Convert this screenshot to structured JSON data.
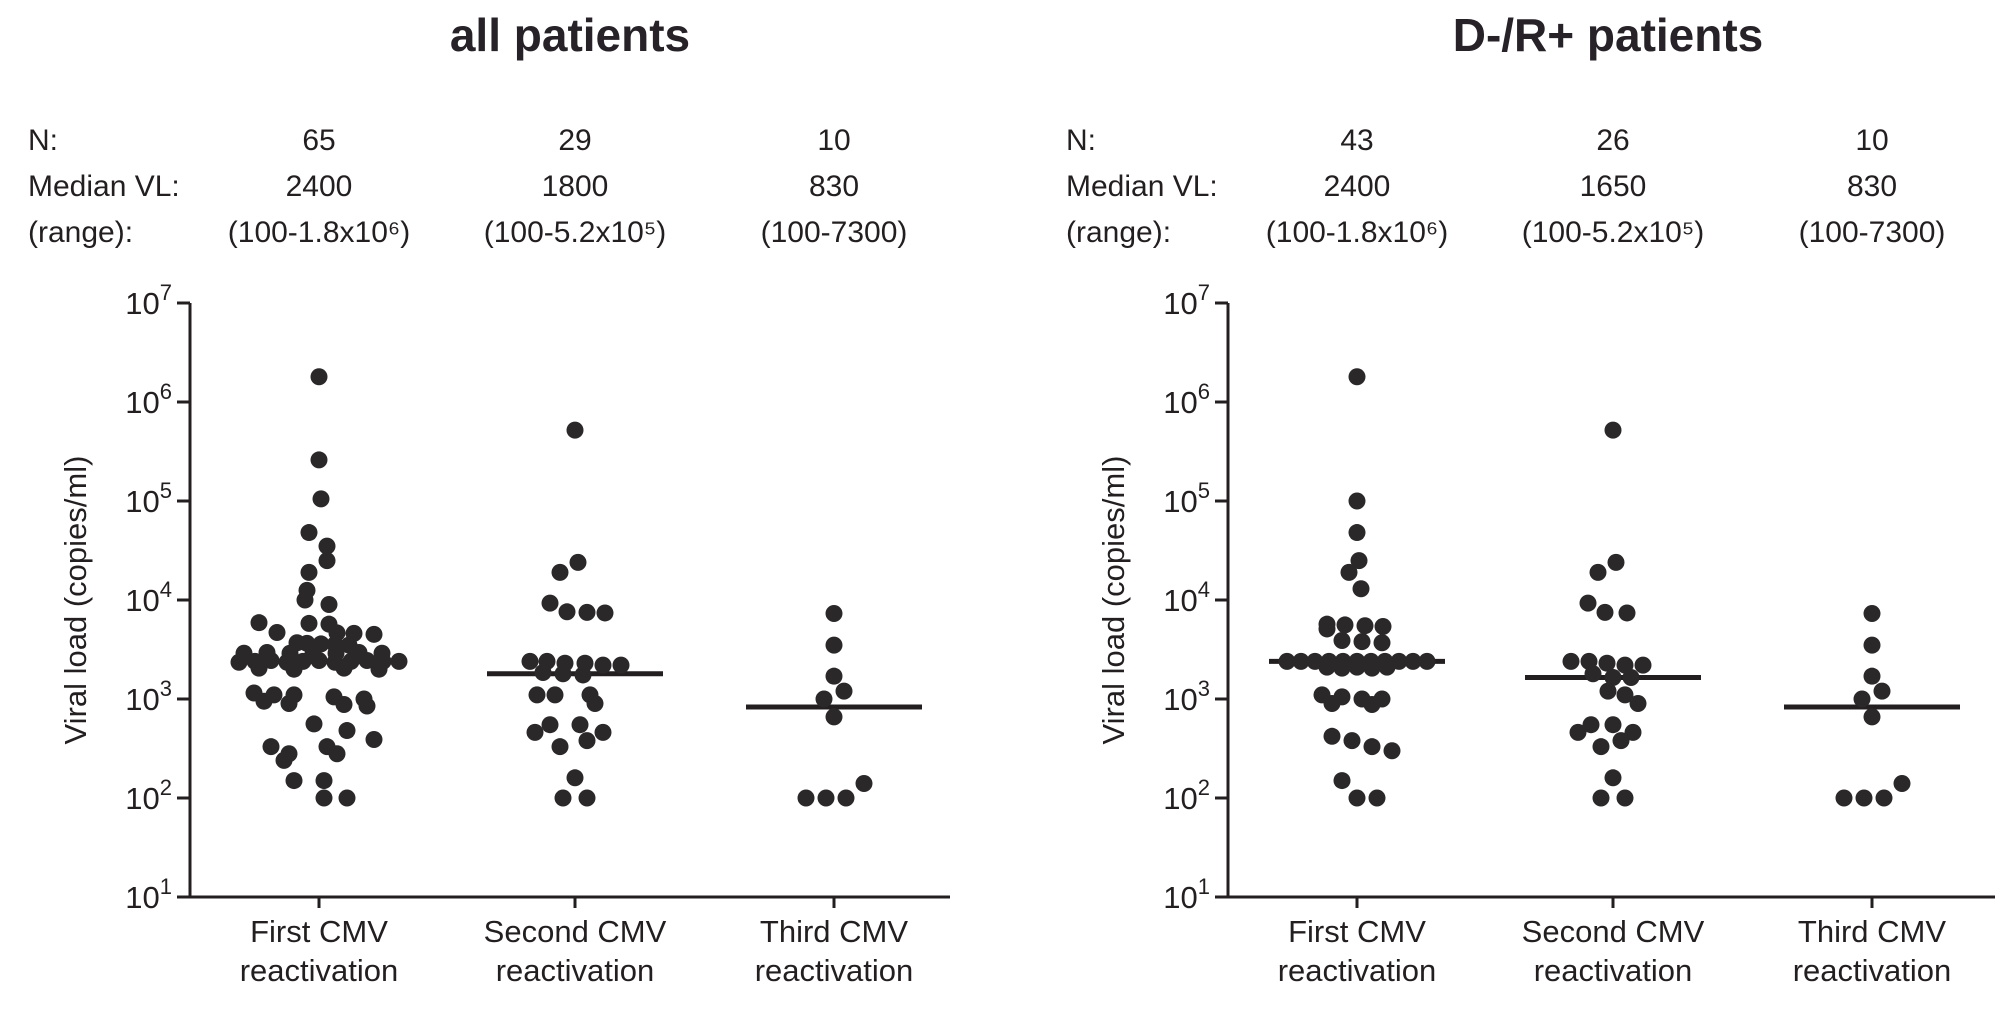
{
  "figure": {
    "background": "#ffffff",
    "ink": "#231f20",
    "dot_color": "#2b282a"
  },
  "chart_data": [
    {
      "type": "scatter",
      "title": "all patients",
      "ylabel": "Viral load (copies/ml)",
      "yscale": "log",
      "ylim": [
        10,
        10000000
      ],
      "ytick_exponents": [
        7,
        6,
        5,
        4,
        3,
        2,
        1
      ],
      "grid": false,
      "categories": [
        "First CMV reactivation",
        "Second CMV reactivation",
        "Third CMV reactivation"
      ],
      "category_lines": [
        [
          "First CMV",
          "reactivation"
        ],
        [
          "Second CMV",
          "reactivation"
        ],
        [
          "Third CMV",
          "reactivation"
        ]
      ],
      "stats": {
        "n_label": "N:",
        "median_label": "Median VL:",
        "range_label": "(range):",
        "n": [
          "65",
          "29",
          "10"
        ],
        "median": [
          "2400",
          "1800",
          "830"
        ],
        "range": [
          "(100-1.8x10⁶)",
          "(100-5.2x10⁵)",
          "(100-7300)"
        ]
      },
      "series": [
        {
          "name": "First CMV reactivation",
          "n": 65,
          "median": 2400,
          "range_min": 100,
          "range_max": 1800000,
          "median_line": 2400,
          "points": [
            [
              0,
              1800000
            ],
            [
              0,
              260000
            ],
            [
              2,
              105000
            ],
            [
              -10,
              48000
            ],
            [
              8,
              35000
            ],
            [
              8,
              25000
            ],
            [
              -10,
              19000
            ],
            [
              -12,
              12500
            ],
            [
              -14,
              10000
            ],
            [
              10,
              9000
            ],
            [
              -60,
              5900
            ],
            [
              -10,
              5800
            ],
            [
              10,
              5700
            ],
            [
              -42,
              4700
            ],
            [
              18,
              4650
            ],
            [
              35,
              4600
            ],
            [
              55,
              4500
            ],
            [
              -22,
              3700
            ],
            [
              -12,
              3650
            ],
            [
              2,
              3600
            ],
            [
              16,
              3550
            ],
            [
              30,
              3500
            ],
            [
              -75,
              2900
            ],
            [
              -52,
              2950
            ],
            [
              -29,
              2900
            ],
            [
              -6,
              2850
            ],
            [
              17,
              2900
            ],
            [
              40,
              2950
            ],
            [
              63,
              2900
            ],
            [
              -80,
              2350
            ],
            [
              -64,
              2400
            ],
            [
              -48,
              2450
            ],
            [
              -32,
              2350
            ],
            [
              -16,
              2400
            ],
            [
              0,
              2450
            ],
            [
              16,
              2350
            ],
            [
              32,
              2400
            ],
            [
              48,
              2450
            ],
            [
              64,
              2400
            ],
            [
              80,
              2400
            ],
            [
              -60,
              2050
            ],
            [
              -25,
              2000
            ],
            [
              25,
              2050
            ],
            [
              60,
              2000
            ],
            [
              -65,
              1150
            ],
            [
              -45,
              1100
            ],
            [
              -25,
              1100
            ],
            [
              15,
              1050
            ],
            [
              45,
              1000
            ],
            [
              -55,
              950
            ],
            [
              -30,
              900
            ],
            [
              25,
              880
            ],
            [
              48,
              850
            ],
            [
              -5,
              560
            ],
            [
              28,
              480
            ],
            [
              55,
              390
            ],
            [
              -48,
              330
            ],
            [
              8,
              330
            ],
            [
              -30,
              280
            ],
            [
              18,
              280
            ],
            [
              -35,
              240
            ],
            [
              -25,
              150
            ],
            [
              5,
              150
            ],
            [
              5,
              100
            ],
            [
              28,
              100
            ]
          ]
        },
        {
          "name": "Second CMV reactivation",
          "n": 29,
          "median": 1800,
          "range_min": 100,
          "range_max": 520000,
          "median_line": 1800,
          "points": [
            [
              0,
              520000
            ],
            [
              3,
              24000
            ],
            [
              -15,
              19000
            ],
            [
              -25,
              9300
            ],
            [
              -8,
              7600
            ],
            [
              12,
              7500
            ],
            [
              30,
              7400
            ],
            [
              -45,
              2400
            ],
            [
              -28,
              2400
            ],
            [
              -10,
              2300
            ],
            [
              10,
              2300
            ],
            [
              28,
              2200
            ],
            [
              46,
              2200
            ],
            [
              -32,
              1850
            ],
            [
              -12,
              1800
            ],
            [
              8,
              1750
            ],
            [
              -38,
              1100
            ],
            [
              -20,
              1100
            ],
            [
              15,
              1100
            ],
            [
              20,
              900
            ],
            [
              -25,
              550
            ],
            [
              5,
              550
            ],
            [
              -40,
              460
            ],
            [
              28,
              460
            ],
            [
              12,
              380
            ],
            [
              -15,
              330
            ],
            [
              0,
              160
            ],
            [
              -12,
              100
            ],
            [
              12,
              100
            ]
          ]
        },
        {
          "name": "Third CMV reactivation",
          "n": 10,
          "median": 830,
          "range_min": 100,
          "range_max": 7300,
          "median_line": 830,
          "points": [
            [
              0,
              7300
            ],
            [
              0,
              3500
            ],
            [
              0,
              1700
            ],
            [
              10,
              1200
            ],
            [
              -10,
              1000
            ],
            [
              0,
              660
            ],
            [
              30,
              140
            ],
            [
              -28,
              100
            ],
            [
              -8,
              100
            ],
            [
              12,
              100
            ]
          ]
        }
      ]
    },
    {
      "type": "scatter",
      "title": "D-/R+ patients",
      "ylabel": "Viral load (copies/ml)",
      "yscale": "log",
      "ylim": [
        10,
        10000000
      ],
      "ytick_exponents": [
        7,
        6,
        5,
        4,
        3,
        2,
        1
      ],
      "grid": false,
      "categories": [
        "First CMV reactivation",
        "Second CMV reactivation",
        "Third CMV reactivation"
      ],
      "category_lines": [
        [
          "First CMV",
          "reactivation"
        ],
        [
          "Second CMV",
          "reactivation"
        ],
        [
          "Third CMV",
          "reactivation"
        ]
      ],
      "stats": {
        "n_label": "N:",
        "median_label": "Median VL:",
        "range_label": "(range):",
        "n": [
          "43",
          "26",
          "10"
        ],
        "median": [
          "2400",
          "1650",
          "830"
        ],
        "range": [
          "(100-1.8x10⁶)",
          "(100-5.2x10⁵)",
          "(100-7300)"
        ]
      },
      "series": [
        {
          "name": "First CMV reactivation",
          "n": 43,
          "median": 2400,
          "range_min": 100,
          "range_max": 1800000,
          "median_line": 2400,
          "points": [
            [
              0,
              1800000
            ],
            [
              0,
              100000
            ],
            [
              0,
              48000
            ],
            [
              2,
              25000
            ],
            [
              -8,
              19000
            ],
            [
              4,
              13000
            ],
            [
              -30,
              5700
            ],
            [
              -30,
              5100
            ],
            [
              -12,
              5600
            ],
            [
              8,
              5500
            ],
            [
              26,
              5400
            ],
            [
              -15,
              3900
            ],
            [
              5,
              3800
            ],
            [
              25,
              3700
            ],
            [
              -70,
              2400
            ],
            [
              -56,
              2400
            ],
            [
              -42,
              2400
            ],
            [
              -28,
              2400
            ],
            [
              -14,
              2400
            ],
            [
              0,
              2400
            ],
            [
              14,
              2400
            ],
            [
              28,
              2400
            ],
            [
              42,
              2400
            ],
            [
              56,
              2400
            ],
            [
              70,
              2400
            ],
            [
              -30,
              2100
            ],
            [
              -15,
              2050
            ],
            [
              0,
              2100
            ],
            [
              15,
              2050
            ],
            [
              30,
              2100
            ],
            [
              -35,
              1100
            ],
            [
              -15,
              1050
            ],
            [
              5,
              1000
            ],
            [
              25,
              1000
            ],
            [
              -25,
              900
            ],
            [
              15,
              880
            ],
            [
              -25,
              420
            ],
            [
              -5,
              380
            ],
            [
              15,
              330
            ],
            [
              35,
              300
            ],
            [
              -15,
              150
            ],
            [
              0,
              100
            ],
            [
              20,
              100
            ]
          ]
        },
        {
          "name": "Second CMV reactivation",
          "n": 26,
          "median": 1650,
          "range_min": 100,
          "range_max": 520000,
          "median_line": 1650,
          "points": [
            [
              0,
              520000
            ],
            [
              3,
              24000
            ],
            [
              -15,
              19000
            ],
            [
              -25,
              9300
            ],
            [
              -8,
              7500
            ],
            [
              14,
              7400
            ],
            [
              -42,
              2400
            ],
            [
              -24,
              2400
            ],
            [
              -6,
              2300
            ],
            [
              12,
              2200
            ],
            [
              30,
              2200
            ],
            [
              -20,
              1800
            ],
            [
              0,
              1650
            ],
            [
              18,
              1650
            ],
            [
              -5,
              1200
            ],
            [
              12,
              1100
            ],
            [
              25,
              900
            ],
            [
              -22,
              550
            ],
            [
              0,
              550
            ],
            [
              -35,
              460
            ],
            [
              20,
              460
            ],
            [
              8,
              380
            ],
            [
              -12,
              330
            ],
            [
              0,
              160
            ],
            [
              -12,
              100
            ],
            [
              12,
              100
            ]
          ]
        },
        {
          "name": "Third CMV reactivation",
          "n": 10,
          "median": 830,
          "range_min": 100,
          "range_max": 7300,
          "median_line": 830,
          "points": [
            [
              0,
              7300
            ],
            [
              0,
              3500
            ],
            [
              0,
              1700
            ],
            [
              10,
              1200
            ],
            [
              -10,
              1000
            ],
            [
              0,
              660
            ],
            [
              30,
              140
            ],
            [
              -28,
              100
            ],
            [
              -8,
              100
            ],
            [
              12,
              100
            ]
          ]
        }
      ]
    }
  ]
}
